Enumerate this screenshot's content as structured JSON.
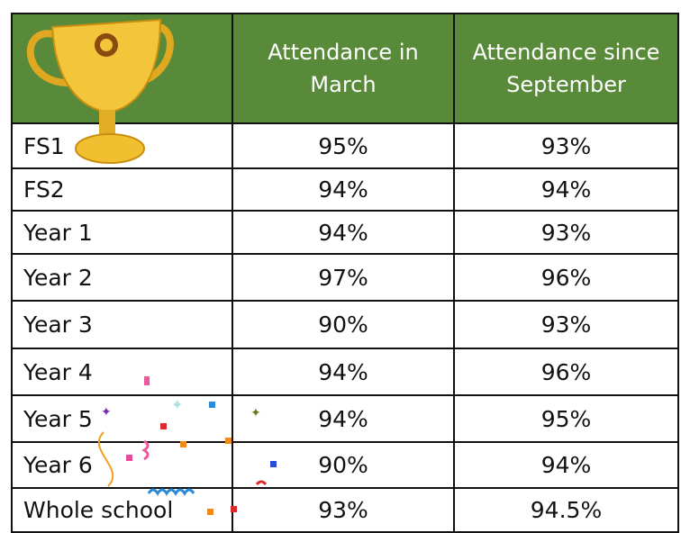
{
  "table": {
    "header": [
      "Attendance in March",
      "Attendance since September"
    ],
    "rows": [
      [
        "FS1",
        "95%",
        "93%"
      ],
      [
        "FS2",
        "94%",
        "94%"
      ],
      [
        "Year 1",
        "94%",
        "93%"
      ],
      [
        "Year 2",
        "97%",
        "96%"
      ],
      [
        "Year 3",
        "90%",
        "93%"
      ],
      [
        "Year 4",
        "94%",
        "96%"
      ],
      [
        "Year 5",
        "94%",
        "95%"
      ],
      [
        "Year 6",
        "90%",
        "94%"
      ],
      [
        "Whole school",
        "93%",
        "94.5%"
      ]
    ]
  }
}
